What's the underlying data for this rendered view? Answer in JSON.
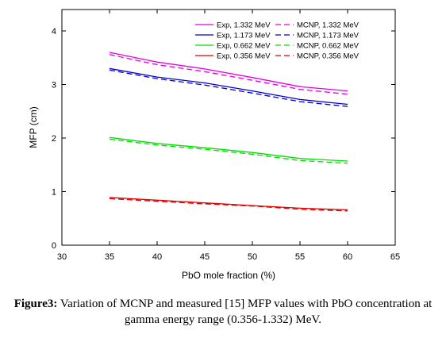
{
  "chart_data": {
    "type": "line",
    "xlabel": "PbO mole fraction (%)",
    "ylabel": "MFP (cm)",
    "xlim": [
      30,
      65
    ],
    "ylim": [
      0,
      4.4
    ],
    "xticks": [
      30,
      35,
      40,
      45,
      50,
      55,
      60,
      65
    ],
    "yticks": [
      0,
      1,
      2,
      3,
      4
    ],
    "legend_position": "top-right",
    "grid": false,
    "series": [
      {
        "name": "Exp, 1.332 MeV",
        "color": "#e400e4",
        "dash": false,
        "x": [
          35,
          40,
          45,
          50,
          55,
          60
        ],
        "y": [
          3.6,
          3.42,
          3.29,
          3.13,
          2.96,
          2.88
        ]
      },
      {
        "name": "Exp, 1.173 MeV",
        "color": "#0000cc",
        "dash": false,
        "x": [
          35,
          40,
          45,
          50,
          55,
          60
        ],
        "y": [
          3.3,
          3.14,
          3.03,
          2.88,
          2.72,
          2.63
        ]
      },
      {
        "name": "Exp, 0.662 MeV",
        "color": "#00dd00",
        "dash": false,
        "x": [
          35,
          40,
          45,
          50,
          55,
          60
        ],
        "y": [
          2.01,
          1.9,
          1.82,
          1.73,
          1.62,
          1.57
        ]
      },
      {
        "name": "Exp, 0.356 MeV",
        "color": "#e00000",
        "dash": false,
        "x": [
          35,
          40,
          45,
          50,
          55,
          60
        ],
        "y": [
          0.89,
          0.84,
          0.79,
          0.74,
          0.69,
          0.66
        ]
      },
      {
        "name": "MCNP, 1.332 MeV",
        "color": "#e400e4",
        "dash": true,
        "x": [
          35,
          40,
          45,
          50,
          55,
          60
        ],
        "y": [
          3.56,
          3.37,
          3.24,
          3.08,
          2.91,
          2.82
        ]
      },
      {
        "name": "MCNP, 1.173 MeV",
        "color": "#0000cc",
        "dash": true,
        "x": [
          35,
          40,
          45,
          50,
          55,
          60
        ],
        "y": [
          3.27,
          3.11,
          2.99,
          2.84,
          2.68,
          2.59
        ]
      },
      {
        "name": "MCNP, 0.662 MeV",
        "color": "#00dd00",
        "dash": true,
        "x": [
          35,
          40,
          45,
          50,
          55,
          60
        ],
        "y": [
          1.98,
          1.87,
          1.79,
          1.7,
          1.58,
          1.53
        ]
      },
      {
        "name": "MCNP, 0.356 MeV",
        "color": "#e00000",
        "dash": true,
        "x": [
          35,
          40,
          45,
          50,
          55,
          60
        ],
        "y": [
          0.87,
          0.82,
          0.77,
          0.73,
          0.67,
          0.64
        ]
      }
    ]
  },
  "caption": {
    "bold": "Figure3:",
    "text": " Variation of MCNP and measured [15] MFP values with PbO concentration at gamma energy range (0.356-1.332) MeV."
  }
}
